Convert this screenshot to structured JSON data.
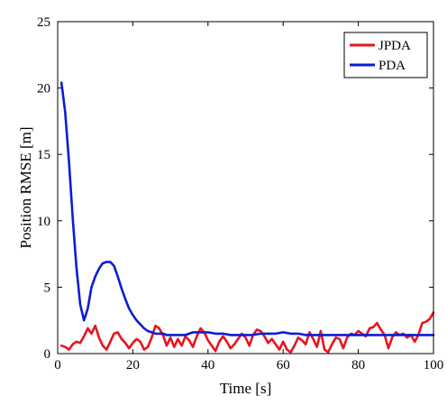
{
  "chart_data": {
    "type": "line",
    "title": "",
    "xlabel": "Time [s]",
    "ylabel": "Position RMSE [m]",
    "xlim": [
      0,
      100
    ],
    "ylim": [
      0,
      25
    ],
    "xticks": [
      0,
      20,
      40,
      60,
      80,
      100
    ],
    "yticks": [
      0,
      5,
      10,
      15,
      20,
      25
    ],
    "xtick_labels": [
      "0",
      "20",
      "40",
      "60",
      "80",
      "100"
    ],
    "ytick_labels": [
      "0",
      "5",
      "10",
      "15",
      "20",
      "25"
    ],
    "grid": false,
    "legend_position": "top-right",
    "series": [
      {
        "name": "JPDA",
        "color": "#e8141b",
        "x": [
          1,
          2,
          3,
          4,
          5,
          6,
          7,
          8,
          9,
          10,
          11,
          12,
          13,
          14,
          15,
          16,
          17,
          18,
          19,
          20,
          21,
          22,
          23,
          24,
          25,
          26,
          27,
          28,
          29,
          30,
          31,
          32,
          33,
          34,
          35,
          36,
          37,
          38,
          39,
          40,
          41,
          42,
          43,
          44,
          45,
          46,
          47,
          48,
          49,
          50,
          51,
          52,
          53,
          54,
          55,
          56,
          57,
          58,
          59,
          60,
          61,
          62,
          63,
          64,
          65,
          66,
          67,
          68,
          69,
          70,
          71,
          72,
          73,
          74,
          75,
          76,
          77,
          78,
          79,
          80,
          81,
          82,
          83,
          84,
          85,
          86,
          87,
          88,
          89,
          90,
          91,
          92,
          93,
          94,
          95,
          96,
          97,
          98,
          99,
          100
        ],
        "values": [
          0.6,
          0.5,
          0.3,
          0.7,
          0.9,
          0.8,
          1.3,
          1.9,
          1.5,
          2.1,
          1.2,
          0.6,
          0.3,
          0.9,
          1.5,
          1.6,
          1.1,
          0.8,
          0.4,
          0.8,
          1.1,
          0.9,
          0.3,
          0.5,
          1.2,
          2.1,
          1.9,
          1.4,
          0.6,
          1.2,
          0.5,
          1.1,
          0.6,
          1.3,
          1.0,
          0.5,
          1.3,
          1.9,
          1.6,
          1.0,
          0.6,
          0.2,
          0.9,
          1.3,
          0.9,
          0.4,
          0.7,
          1.1,
          1.5,
          1.2,
          0.6,
          1.4,
          1.8,
          1.7,
          1.3,
          0.8,
          1.1,
          0.7,
          0.3,
          0.9,
          0.3,
          0.1,
          0.6,
          1.2,
          1.0,
          0.7,
          1.6,
          1.1,
          0.5,
          1.7,
          0.3,
          0.1,
          0.7,
          1.2,
          1.1,
          0.4,
          1.2,
          1.5,
          1.4,
          1.7,
          1.5,
          1.3,
          1.9,
          2.0,
          2.3,
          1.8,
          1.4,
          0.4,
          1.2,
          1.6,
          1.4,
          1.5,
          1.2,
          1.4,
          0.9,
          1.4,
          2.3,
          2.4,
          2.6,
          3.1
        ]
      },
      {
        "name": "PDA",
        "color": "#0a1ed2",
        "x": [
          1,
          2,
          3,
          4,
          5,
          6,
          7,
          8,
          9,
          10,
          11,
          12,
          13,
          14,
          15,
          16,
          17,
          18,
          19,
          20,
          21,
          22,
          23,
          24,
          25,
          26,
          27,
          28,
          29,
          30,
          32,
          34,
          36,
          38,
          40,
          42,
          44,
          46,
          48,
          50,
          52,
          54,
          56,
          58,
          60,
          62,
          64,
          66,
          68,
          70,
          72,
          74,
          76,
          78,
          80,
          82,
          84,
          86,
          88,
          90,
          92,
          94,
          96,
          98,
          100
        ],
        "values": [
          20.4,
          18.2,
          14.5,
          10.2,
          6.5,
          3.7,
          2.5,
          3.4,
          5.0,
          5.8,
          6.4,
          6.8,
          6.9,
          6.9,
          6.6,
          5.8,
          4.9,
          4.1,
          3.4,
          2.9,
          2.5,
          2.2,
          1.9,
          1.7,
          1.6,
          1.5,
          1.5,
          1.5,
          1.4,
          1.4,
          1.4,
          1.4,
          1.6,
          1.6,
          1.6,
          1.5,
          1.5,
          1.4,
          1.4,
          1.4,
          1.4,
          1.5,
          1.5,
          1.5,
          1.6,
          1.5,
          1.5,
          1.4,
          1.4,
          1.4,
          1.4,
          1.4,
          1.4,
          1.4,
          1.4,
          1.4,
          1.4,
          1.4,
          1.4,
          1.4,
          1.4,
          1.4,
          1.4,
          1.4,
          1.4
        ]
      }
    ]
  }
}
